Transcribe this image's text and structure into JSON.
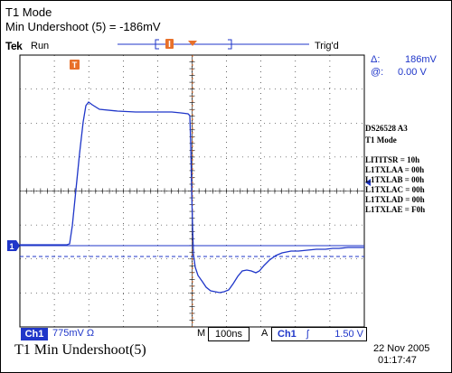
{
  "header": {
    "line1": "T1 Mode",
    "line2": "Min Undershoot (5) = -186mV",
    "brand": "Tek",
    "run_status": "Run",
    "trig_status": "Trig'd"
  },
  "markers": {
    "trigger_pos_label": "T",
    "channel_label": "1"
  },
  "readouts": {
    "delta_label": "Δ:",
    "delta_value": "186mV",
    "at_label": "@:",
    "at_value": "0.00 V"
  },
  "device_info": {
    "id": "DS26528  A3",
    "mode": "T1 Mode",
    "registers": [
      "LITITSR = 10h",
      "L1TXLAA = 00h",
      "L1TXLAB = 00h",
      "L1TXLAC = 00h",
      "L1TXLAD = 00h",
      "L1TXLAE = F0h"
    ]
  },
  "status_bar": {
    "channel": "Ch1",
    "volts_per_div": "775mV Ω",
    "m_label": "M",
    "time_per_div": "100ns",
    "a_label": "A",
    "trig_channel": "Ch1",
    "trig_edge": "ʃ",
    "trig_level": "1.50 V"
  },
  "footer": {
    "caption": "T1 Min Undershoot(5)",
    "date": "22 Nov 2005",
    "time": "01:17:47"
  },
  "colors": {
    "trace": "#1f36c9",
    "grid": "#000000",
    "marker_orange": "#e8702a"
  }
}
